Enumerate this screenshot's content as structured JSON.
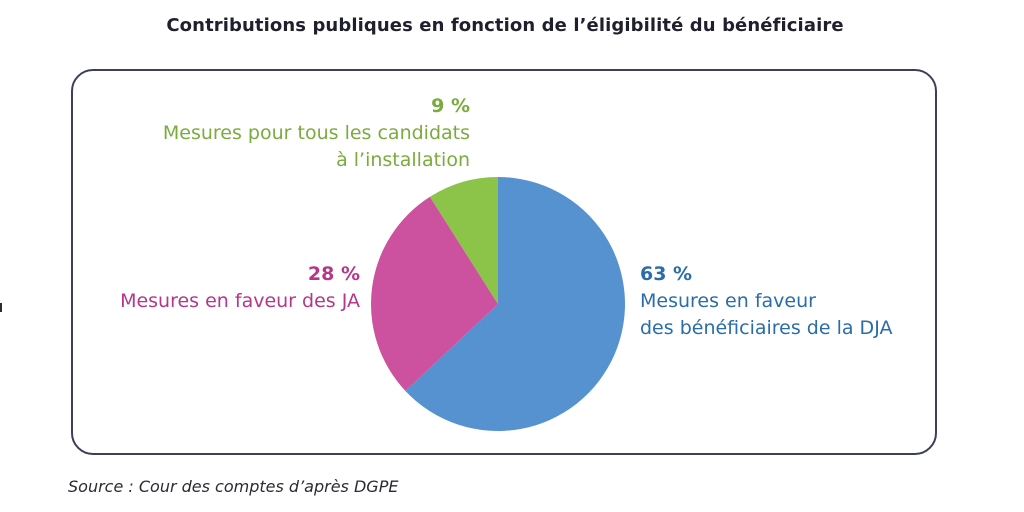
{
  "title": "Contributions publiques en fonction de l’éligibilité du bénéficiaire",
  "source": "Source : Cour des comptes d’après DGPE",
  "chart_data": {
    "type": "pie",
    "title": "Contributions publiques en fonction de l’éligibilité du bénéficiaire",
    "slices": [
      {
        "value": 63,
        "pct_label": "63 %",
        "label_lines": [
          "Mesures en faveur",
          "des bénéficiaires de la DJA"
        ],
        "color": "#5592cf",
        "text_color": "#2a6da8"
      },
      {
        "value": 28,
        "pct_label": "28 %",
        "label_lines": [
          "Mesures en faveur des JA"
        ],
        "color": "#cc52a0",
        "text_color": "#b5368a"
      },
      {
        "value": 9,
        "pct_label": "9 %",
        "label_lines": [
          "Mesures pour tous les candidats",
          "à l’installation"
        ],
        "color": "#8cc44a",
        "text_color": "#7aab3c"
      }
    ],
    "start_angle": "top",
    "direction": "clockwise"
  }
}
